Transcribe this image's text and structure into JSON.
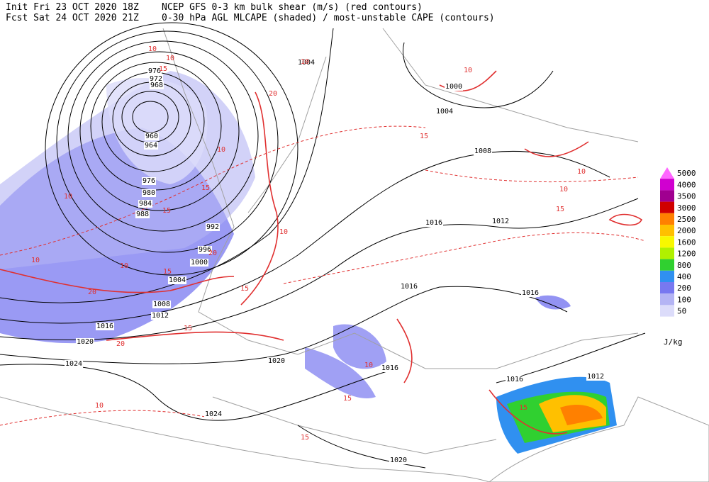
{
  "header": {
    "init": "Init  Fri 23 OCT 2020 18Z",
    "fcst": "Fcst Sat 24 OCT 2020 21Z",
    "title1": "NCEP GFS 0-3 km bulk shear (m/s) (red contours)",
    "title2": "0-30 hPa AGL MLCAPE (shaded) / most-unstable CAPE (contours)"
  },
  "legend": {
    "unit": "J/kg",
    "levels": [
      {
        "label": "5000",
        "color": "#ff66ff"
      },
      {
        "label": "4000",
        "color": "#d000d0"
      },
      {
        "label": "3500",
        "color": "#a00090"
      },
      {
        "label": "3000",
        "color": "#d00000"
      },
      {
        "label": "2500",
        "color": "#ff8000"
      },
      {
        "label": "2000",
        "color": "#ffc000"
      },
      {
        "label": "1600",
        "color": "#f8f800"
      },
      {
        "label": "1200",
        "color": "#b0f000"
      },
      {
        "label": "800",
        "color": "#30d030"
      },
      {
        "label": "400",
        "color": "#3090f0"
      },
      {
        "label": "200",
        "color": "#7878f0"
      },
      {
        "label": "100",
        "color": "#b4b4f4"
      },
      {
        "label": "50",
        "color": "#dcdcfa"
      }
    ]
  },
  "isobar_labels": [
    "1004",
    "1000",
    "1004",
    "976",
    "972",
    "968",
    "960",
    "964",
    "1008",
    "976",
    "980",
    "984",
    "988",
    "992",
    "1016",
    "1012",
    "996",
    "1000",
    "1004",
    "1016",
    "1016",
    "1008",
    "1012",
    "1016",
    "1020",
    "1020",
    "1016",
    "1024",
    "1016",
    "1012",
    "1024",
    "1020"
  ],
  "shear_labels": [
    "10",
    "10",
    "15",
    "20",
    "10",
    "15",
    "10",
    "15",
    "10",
    "10",
    "15",
    "20",
    "10",
    "10",
    "15",
    "20",
    "15",
    "10",
    "15",
    "10",
    "10",
    "15",
    "15",
    "10",
    "15",
    "20",
    "15",
    "10"
  ]
}
